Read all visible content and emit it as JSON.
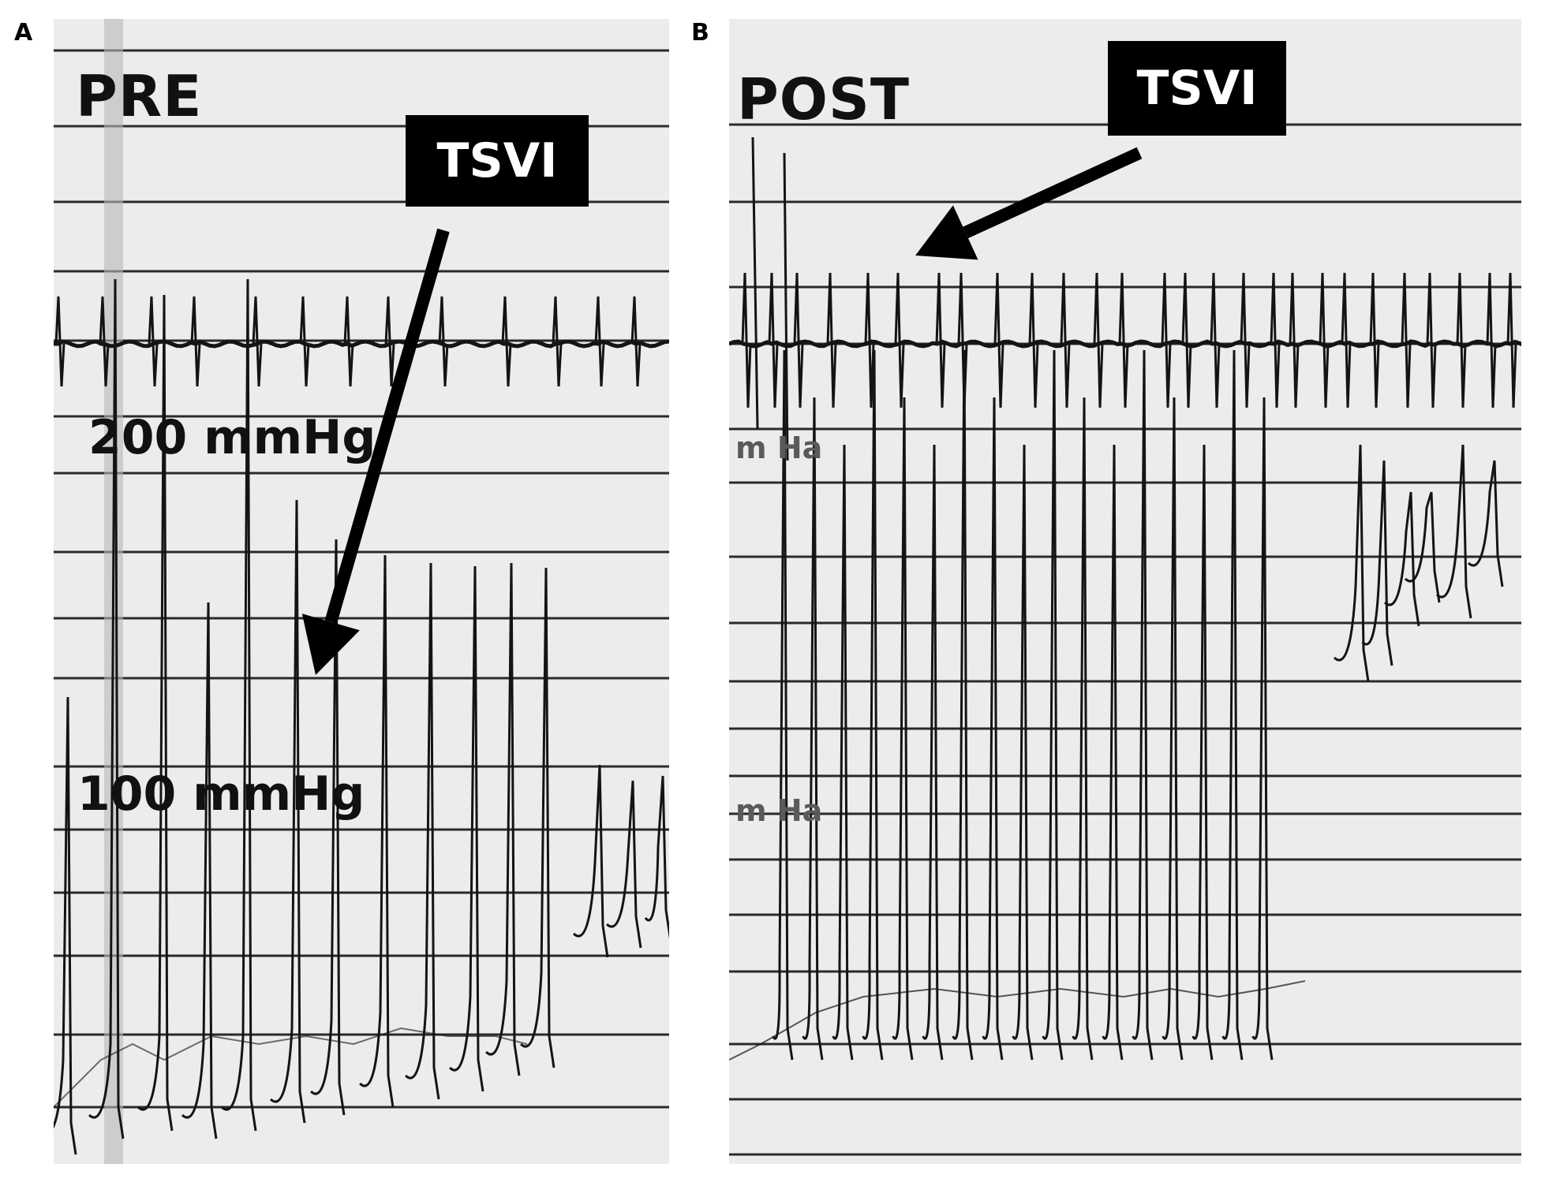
{
  "figure": {
    "panel_a": {
      "letter": "A",
      "condition": "PRE",
      "callout": "TSVI",
      "label_high": "200 mmHg",
      "label_low": "100 mmHg"
    },
    "panel_b": {
      "letter": "B",
      "condition": "POST",
      "callout": "TSVI",
      "label_high": "m Ha",
      "label_low": "m Ha"
    }
  },
  "colors": {
    "trace": "#141414",
    "gridline": "#2a2a2a",
    "paper": "#ececec",
    "callout_bg": "#000000"
  }
}
